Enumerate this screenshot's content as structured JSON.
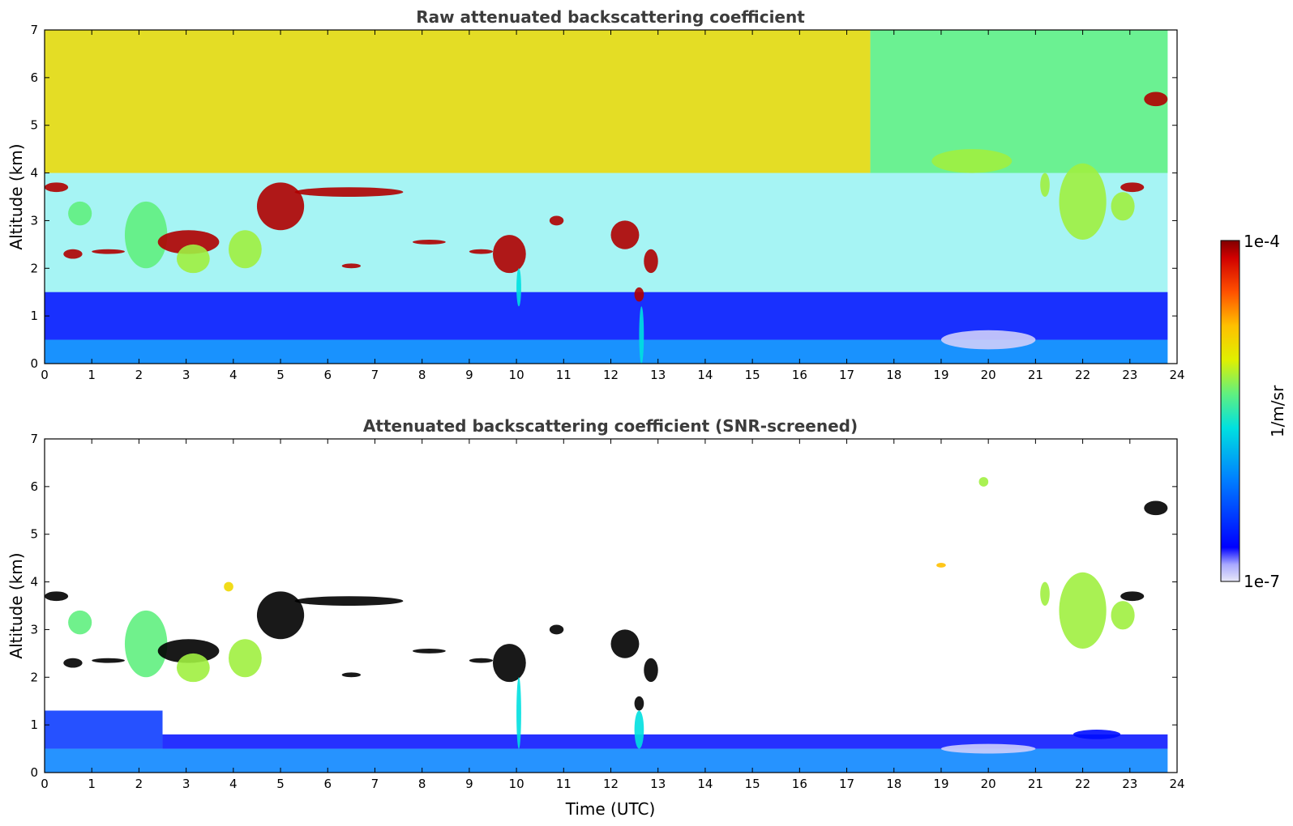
{
  "chart_data": [
    {
      "type": "heatmap",
      "title": "Raw attenuated backscattering coefficient",
      "xlabel": "",
      "ylabel": "Altitude (km)",
      "xlim": [
        0,
        24
      ],
      "ylim": [
        0,
        7
      ],
      "x_ticks": [
        "0",
        "1",
        "2",
        "3",
        "4",
        "5",
        "6",
        "7",
        "8",
        "9",
        "10",
        "11",
        "12",
        "13",
        "14",
        "15",
        "16",
        "17",
        "18",
        "19",
        "20",
        "21",
        "22",
        "23",
        "24"
      ],
      "y_ticks": [
        "0",
        "1",
        "2",
        "3",
        "4",
        "5",
        "6",
        "7"
      ],
      "data_extent_x": [
        0,
        23.8
      ],
      "layers": [
        {
          "x": [
            0,
            23.8
          ],
          "y": [
            0,
            0.5
          ],
          "level": 0.3
        },
        {
          "x": [
            0,
            23.8
          ],
          "y": [
            0.5,
            1.5
          ],
          "level": 0.12
        },
        {
          "x": [
            0,
            17.5
          ],
          "y": [
            4.0,
            7.0
          ],
          "level": 0.7
        },
        {
          "x": [
            17.5,
            23.8
          ],
          "y": [
            4.0,
            7.0
          ],
          "level": 0.55
        }
      ],
      "features": [
        {
          "x": [
            0.0,
            0.5
          ],
          "y": [
            3.6,
            3.8
          ],
          "level": 0.97
        },
        {
          "x": [
            0.5,
            1.0
          ],
          "y": [
            2.9,
            3.4
          ],
          "level": 0.55
        },
        {
          "x": [
            0.4,
            0.8
          ],
          "y": [
            2.2,
            2.4
          ],
          "level": 0.97
        },
        {
          "x": [
            1.0,
            1.7
          ],
          "y": [
            2.3,
            2.4
          ],
          "level": 0.97
        },
        {
          "x": [
            1.7,
            2.6
          ],
          "y": [
            2.0,
            3.4
          ],
          "level": 0.55
        },
        {
          "x": [
            2.4,
            3.7
          ],
          "y": [
            2.3,
            2.8
          ],
          "level": 0.97
        },
        {
          "x": [
            2.8,
            3.5
          ],
          "y": [
            1.9,
            2.5
          ],
          "level": 0.6
        },
        {
          "x": [
            3.9,
            4.6
          ],
          "y": [
            2.0,
            2.8
          ],
          "level": 0.6
        },
        {
          "x": [
            4.5,
            5.5
          ],
          "y": [
            2.8,
            3.8
          ],
          "level": 0.97
        },
        {
          "x": [
            5.3,
            7.6
          ],
          "y": [
            3.5,
            3.7
          ],
          "level": 0.97
        },
        {
          "x": [
            6.3,
            6.7
          ],
          "y": [
            2.0,
            2.1
          ],
          "level": 0.97
        },
        {
          "x": [
            7.8,
            8.5
          ],
          "y": [
            2.5,
            2.6
          ],
          "level": 0.97
        },
        {
          "x": [
            9.0,
            9.5
          ],
          "y": [
            2.3,
            2.4
          ],
          "level": 0.97
        },
        {
          "x": [
            9.5,
            10.2
          ],
          "y": [
            1.9,
            2.7
          ],
          "level": 0.97
        },
        {
          "x": [
            10.0,
            10.1
          ],
          "y": [
            1.2,
            2.0
          ],
          "level": 0.45
        },
        {
          "x": [
            10.7,
            11.0
          ],
          "y": [
            2.9,
            3.1
          ],
          "level": 0.97
        },
        {
          "x": [
            12.0,
            12.6
          ],
          "y": [
            2.4,
            3.0
          ],
          "level": 0.97
        },
        {
          "x": [
            12.5,
            12.7
          ],
          "y": [
            1.3,
            1.6
          ],
          "level": 0.97
        },
        {
          "x": [
            12.7,
            13.0
          ],
          "y": [
            1.9,
            2.4
          ],
          "level": 0.97
        },
        {
          "x": [
            12.6,
            12.7
          ],
          "y": [
            0,
            1.2
          ],
          "level": 0.45
        },
        {
          "x": [
            18.8,
            20.5
          ],
          "y": [
            4.0,
            4.5
          ],
          "level": 0.6
        },
        {
          "x": [
            21.1,
            21.3
          ],
          "y": [
            3.5,
            4.0
          ],
          "level": 0.6
        },
        {
          "x": [
            21.5,
            22.5
          ],
          "y": [
            2.6,
            4.2
          ],
          "level": 0.6
        },
        {
          "x": [
            22.6,
            23.1
          ],
          "y": [
            3.0,
            3.6
          ],
          "level": 0.6
        },
        {
          "x": [
            22.8,
            23.3
          ],
          "y": [
            3.6,
            3.8
          ],
          "level": 0.97
        },
        {
          "x": [
            23.3,
            23.8
          ],
          "y": [
            5.4,
            5.7
          ],
          "level": 0.97
        },
        {
          "x": [
            19.0,
            21.0
          ],
          "y": [
            0.3,
            0.7
          ],
          "level": 0.02
        }
      ]
    },
    {
      "type": "heatmap",
      "title": "Attenuated backscattering coefficient (SNR-screened)",
      "xlabel": "Time (UTC)",
      "ylabel": "Altitude (km)",
      "xlim": [
        0,
        24
      ],
      "ylim": [
        0,
        7
      ],
      "x_ticks": [
        "0",
        "1",
        "2",
        "3",
        "4",
        "5",
        "6",
        "7",
        "8",
        "9",
        "10",
        "11",
        "12",
        "13",
        "14",
        "15",
        "16",
        "17",
        "18",
        "19",
        "20",
        "21",
        "22",
        "23",
        "24"
      ],
      "y_ticks": [
        "0",
        "1",
        "2",
        "3",
        "4",
        "5",
        "6",
        "7"
      ],
      "data_extent_x": [
        0,
        23.8
      ],
      "layers": [
        {
          "x": [
            0,
            23.8
          ],
          "y": [
            0,
            0.5
          ],
          "level": 0.3
        },
        {
          "x": [
            0,
            2.5
          ],
          "y": [
            0.5,
            1.3
          ],
          "level": 0.18
        },
        {
          "x": [
            2.5,
            23.8
          ],
          "y": [
            0.5,
            0.8
          ],
          "level": 0.12
        }
      ],
      "features": [
        {
          "x": [
            0.0,
            0.5
          ],
          "y": [
            3.6,
            3.8
          ],
          "level": 1.0
        },
        {
          "x": [
            0.5,
            1.0
          ],
          "y": [
            2.9,
            3.4
          ],
          "level": 0.55
        },
        {
          "x": [
            0.4,
            0.8
          ],
          "y": [
            2.2,
            2.4
          ],
          "level": 1.0
        },
        {
          "x": [
            1.0,
            1.7
          ],
          "y": [
            2.3,
            2.4
          ],
          "level": 1.0
        },
        {
          "x": [
            1.7,
            2.6
          ],
          "y": [
            2.0,
            3.4
          ],
          "level": 0.55
        },
        {
          "x": [
            2.4,
            3.7
          ],
          "y": [
            2.3,
            2.8
          ],
          "level": 1.0
        },
        {
          "x": [
            2.8,
            3.5
          ],
          "y": [
            1.9,
            2.5
          ],
          "level": 0.6
        },
        {
          "x": [
            3.9,
            4.6
          ],
          "y": [
            2.0,
            2.8
          ],
          "level": 0.6
        },
        {
          "x": [
            3.8,
            4.0
          ],
          "y": [
            3.8,
            4.0
          ],
          "level": 0.7
        },
        {
          "x": [
            4.5,
            5.5
          ],
          "y": [
            2.8,
            3.8
          ],
          "level": 1.0
        },
        {
          "x": [
            5.3,
            7.6
          ],
          "y": [
            3.5,
            3.7
          ],
          "level": 1.0
        },
        {
          "x": [
            6.3,
            6.7
          ],
          "y": [
            2.0,
            2.1
          ],
          "level": 1.0
        },
        {
          "x": [
            7.8,
            8.5
          ],
          "y": [
            2.5,
            2.6
          ],
          "level": 1.0
        },
        {
          "x": [
            9.0,
            9.5
          ],
          "y": [
            2.3,
            2.4
          ],
          "level": 1.0
        },
        {
          "x": [
            9.5,
            10.2
          ],
          "y": [
            1.9,
            2.7
          ],
          "level": 1.0
        },
        {
          "x": [
            10.0,
            10.1
          ],
          "y": [
            0.5,
            2.0
          ],
          "level": 0.45
        },
        {
          "x": [
            10.7,
            11.0
          ],
          "y": [
            2.9,
            3.1
          ],
          "level": 1.0
        },
        {
          "x": [
            12.0,
            12.6
          ],
          "y": [
            2.4,
            3.0
          ],
          "level": 1.0
        },
        {
          "x": [
            12.5,
            12.7
          ],
          "y": [
            1.3,
            1.6
          ],
          "level": 1.0
        },
        {
          "x": [
            12.7,
            13.0
          ],
          "y": [
            1.9,
            2.4
          ],
          "level": 1.0
        },
        {
          "x": [
            12.5,
            12.7
          ],
          "y": [
            0.5,
            1.3
          ],
          "level": 0.45
        },
        {
          "x": [
            18.9,
            19.1
          ],
          "y": [
            4.3,
            4.4
          ],
          "level": 0.75
        },
        {
          "x": [
            19.8,
            20.0
          ],
          "y": [
            6.0,
            6.2
          ],
          "level": 0.6
        },
        {
          "x": [
            21.1,
            21.3
          ],
          "y": [
            3.5,
            4.0
          ],
          "level": 0.6
        },
        {
          "x": [
            21.5,
            22.5
          ],
          "y": [
            2.6,
            4.2
          ],
          "level": 0.6
        },
        {
          "x": [
            22.6,
            23.1
          ],
          "y": [
            3.0,
            3.6
          ],
          "level": 0.6
        },
        {
          "x": [
            22.8,
            23.3
          ],
          "y": [
            3.6,
            3.8
          ],
          "level": 1.0
        },
        {
          "x": [
            23.3,
            23.8
          ],
          "y": [
            5.4,
            5.7
          ],
          "level": 1.0
        },
        {
          "x": [
            19.0,
            21.0
          ],
          "y": [
            0.4,
            0.6
          ],
          "level": 0.02
        },
        {
          "x": [
            21.8,
            22.8
          ],
          "y": [
            0.7,
            0.9
          ],
          "level": 0.12
        }
      ]
    }
  ],
  "colorbar": {
    "label": "1/m/sr",
    "min_label": "1e-7",
    "max_label": "1e-4",
    "scale": "log",
    "colormap": "jet"
  },
  "colors": {
    "cloud_saturated": "#000000",
    "background": "#ffffff"
  }
}
